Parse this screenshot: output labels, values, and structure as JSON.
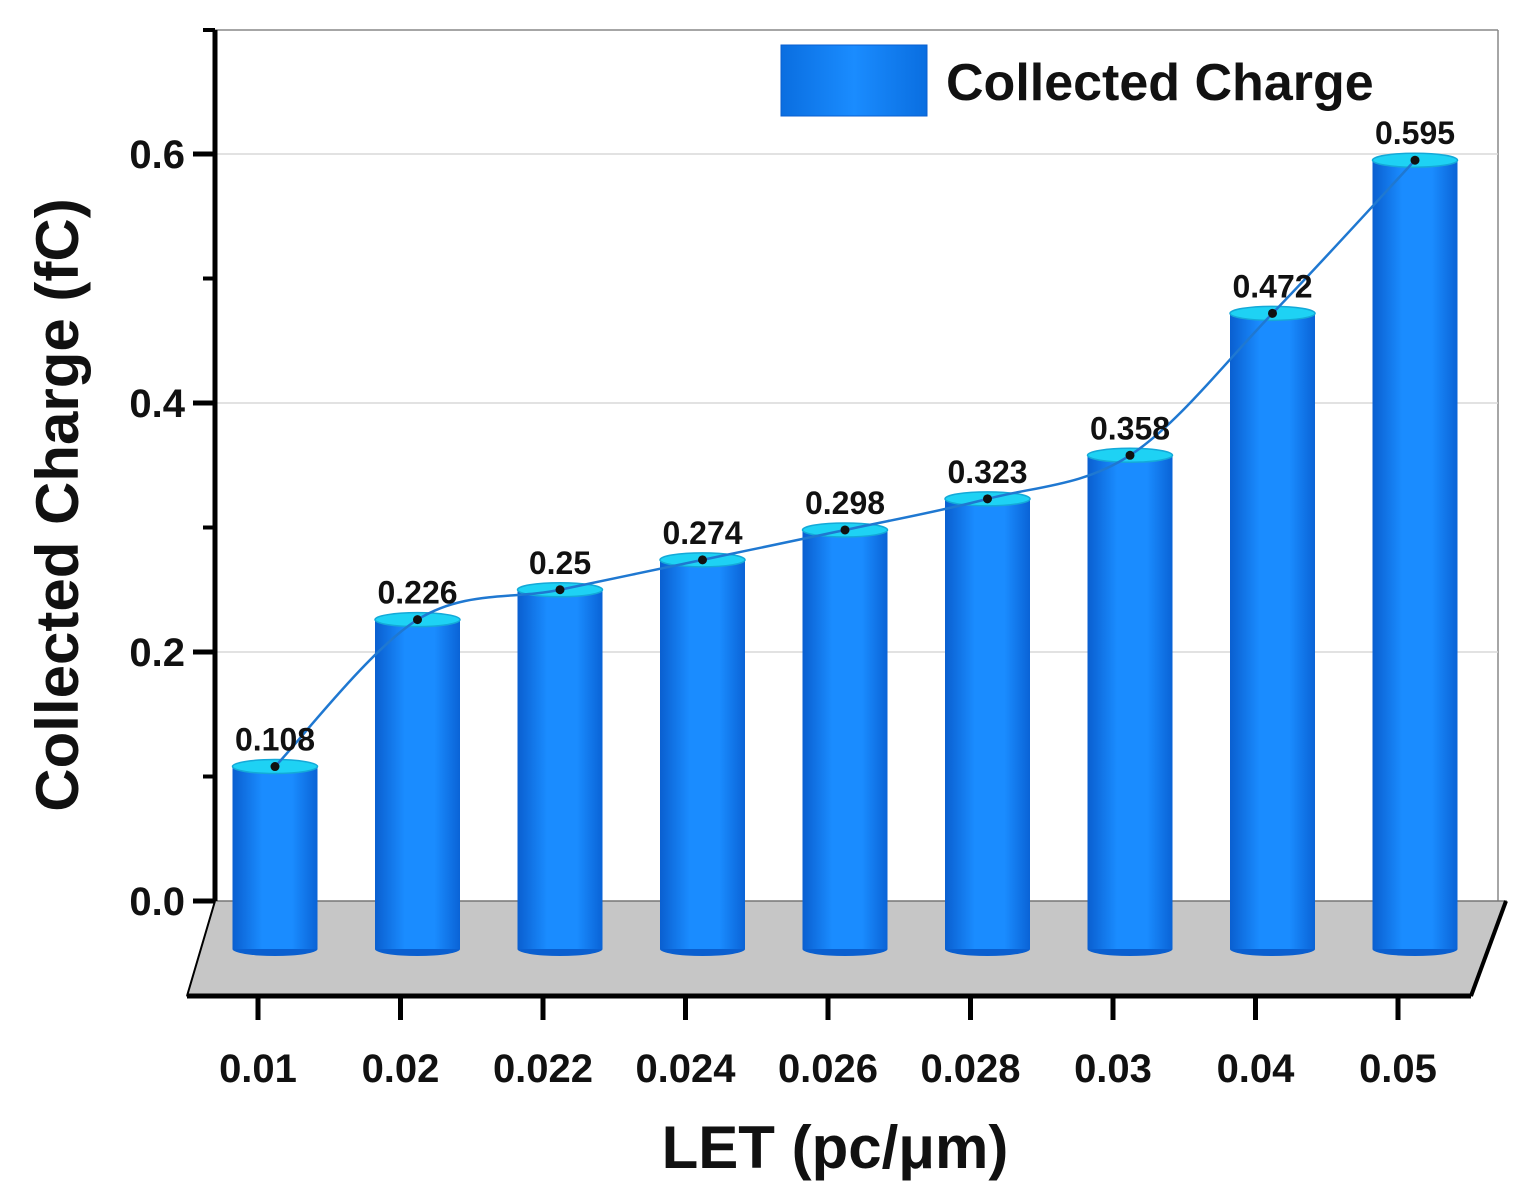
{
  "chart_data": {
    "type": "bar",
    "categories": [
      "0.01",
      "0.02",
      "0.022",
      "0.024",
      "0.026",
      "0.028",
      "0.03",
      "0.04",
      "0.05"
    ],
    "series": [
      {
        "name": "Collected Charge",
        "values": [
          0.108,
          0.226,
          0.25,
          0.274,
          0.298,
          0.323,
          0.358,
          0.472,
          0.595
        ]
      }
    ],
    "data_labels": [
      "0.108",
      "0.226",
      "0.25",
      "0.274",
      "0.298",
      "0.323",
      "0.358",
      "0.472",
      "0.595"
    ],
    "xlabel": "LET (pc/μm)",
    "ylabel": "Collected Charge (fC)",
    "yticks": [
      0.0,
      0.2,
      0.4,
      0.6
    ],
    "ytick_labels": [
      "0.0",
      "0.2",
      "0.4",
      "0.6"
    ],
    "ylim": [
      0,
      0.7
    ],
    "grid": true,
    "legend_position": "top-right",
    "style": "3d-cylinder",
    "colors": {
      "bar": "#1a8cff",
      "bar_dark": "#0a5fd0",
      "bar_top": "#1ed2f4",
      "line": "#1f78d1",
      "floor": "#c6c6c6",
      "grid": "#d8d8d8",
      "axis": "#000000"
    }
  }
}
